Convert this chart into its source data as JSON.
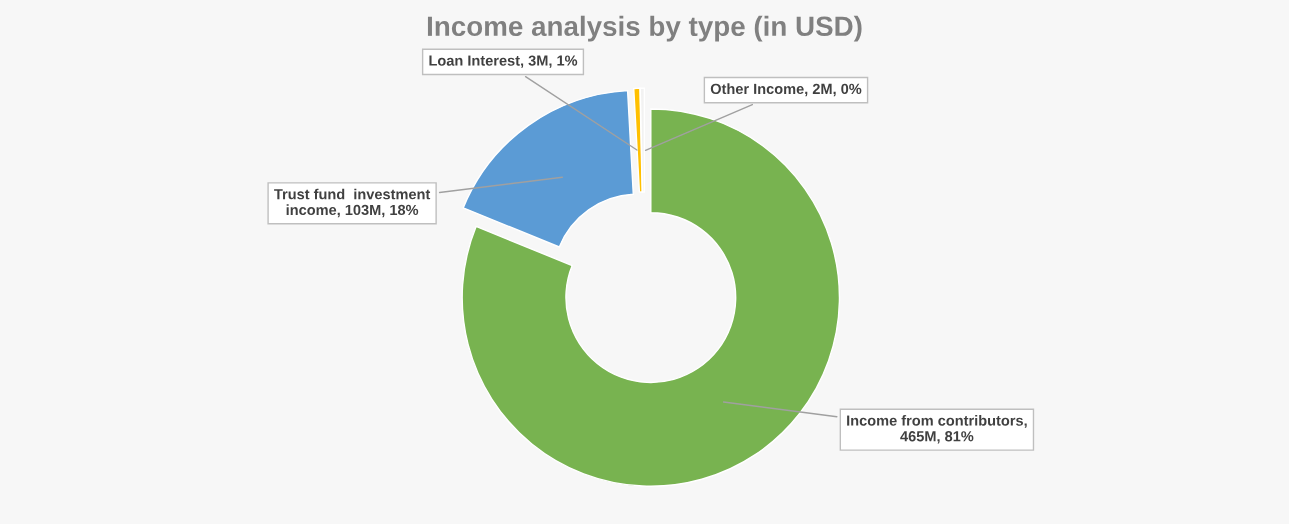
{
  "chart_data": {
    "type": "donut",
    "title": "Income analysis by type (in USD)",
    "categories": [
      "Income from contributors, 465M, 81%",
      "Trust fund  investment income, 103M, 18%",
      "Loan Interest, 3M, 1%",
      "Other Income, 2M, 0%"
    ],
    "values": [
      465000000,
      103000000,
      3000000,
      2000000
    ],
    "colors": [
      "#78b350",
      "#5b9bd5",
      "#ffc000",
      "#f2f2f2"
    ],
    "legend": false
  }
}
